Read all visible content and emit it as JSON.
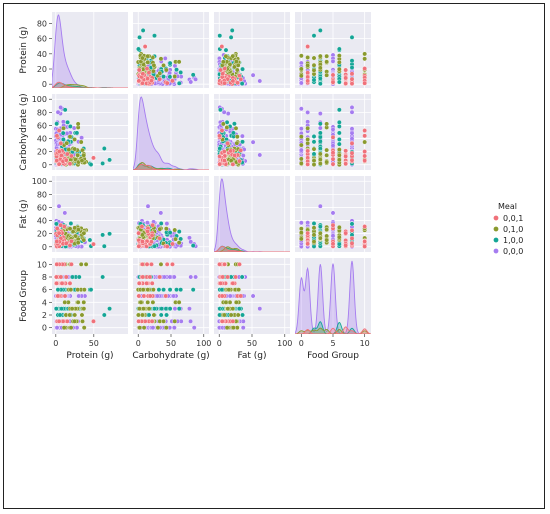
{
  "chart_data": {
    "type": "pairplot",
    "variables": [
      "Protein (g)",
      "Carbohydrate (g)",
      "Fat (g)",
      "Food Group"
    ],
    "ranges": {
      "Protein (g)": [
        -5,
        95
      ],
      "Carbohydrate (g)": [
        -8,
        108
      ],
      "Fat (g)": [
        -8,
        108
      ],
      "Food Group": [
        -1,
        11
      ]
    },
    "y_ticks": {
      "Protein (g)": [
        0,
        20,
        40,
        60,
        80
      ],
      "Carbohydrate (g)": [
        0,
        20,
        40,
        60,
        80,
        100
      ],
      "Fat (g)": [
        0,
        20,
        40,
        60,
        80,
        100
      ],
      "Food Group": [
        0,
        2,
        4,
        6,
        8,
        10
      ]
    },
    "x_ticks": {
      "Protein (g)": [
        0,
        50
      ],
      "Carbohydrate (g)": [
        0,
        50,
        100
      ],
      "Fat (g)": [
        0,
        50,
        100
      ],
      "Food Group": [
        0,
        5,
        10
      ]
    },
    "diagonal": "kde",
    "legend": {
      "title": "Meal",
      "placement": "right",
      "entries": [
        {
          "label": "0,0,1",
          "color": "#f0717a"
        },
        {
          "label": "0,1,0",
          "color": "#8a9a2e"
        },
        {
          "label": "1,0,0",
          "color": "#14a596"
        },
        {
          "label": "0,0,0",
          "color": "#a57cf0"
        }
      ]
    },
    "food_group_by_meal": {
      "0,0,1": [
        1,
        5,
        7,
        8,
        10
      ],
      "0,1,0": [
        0,
        1,
        2,
        3,
        4,
        6,
        10
      ],
      "1,0,0": [
        2,
        3,
        6,
        8
      ],
      "0,0,0": [
        0,
        1,
        3,
        5,
        8
      ]
    },
    "food_group_density_peaks": {
      "0,0,0": 0,
      "0,1,0": 4,
      "0,0,1": 1,
      "1,0,0": 8
    },
    "grid": true
  },
  "colors": {
    "panel_background": "#eaeaf2",
    "grid": "#ffffff",
    "frame": "#222222"
  }
}
